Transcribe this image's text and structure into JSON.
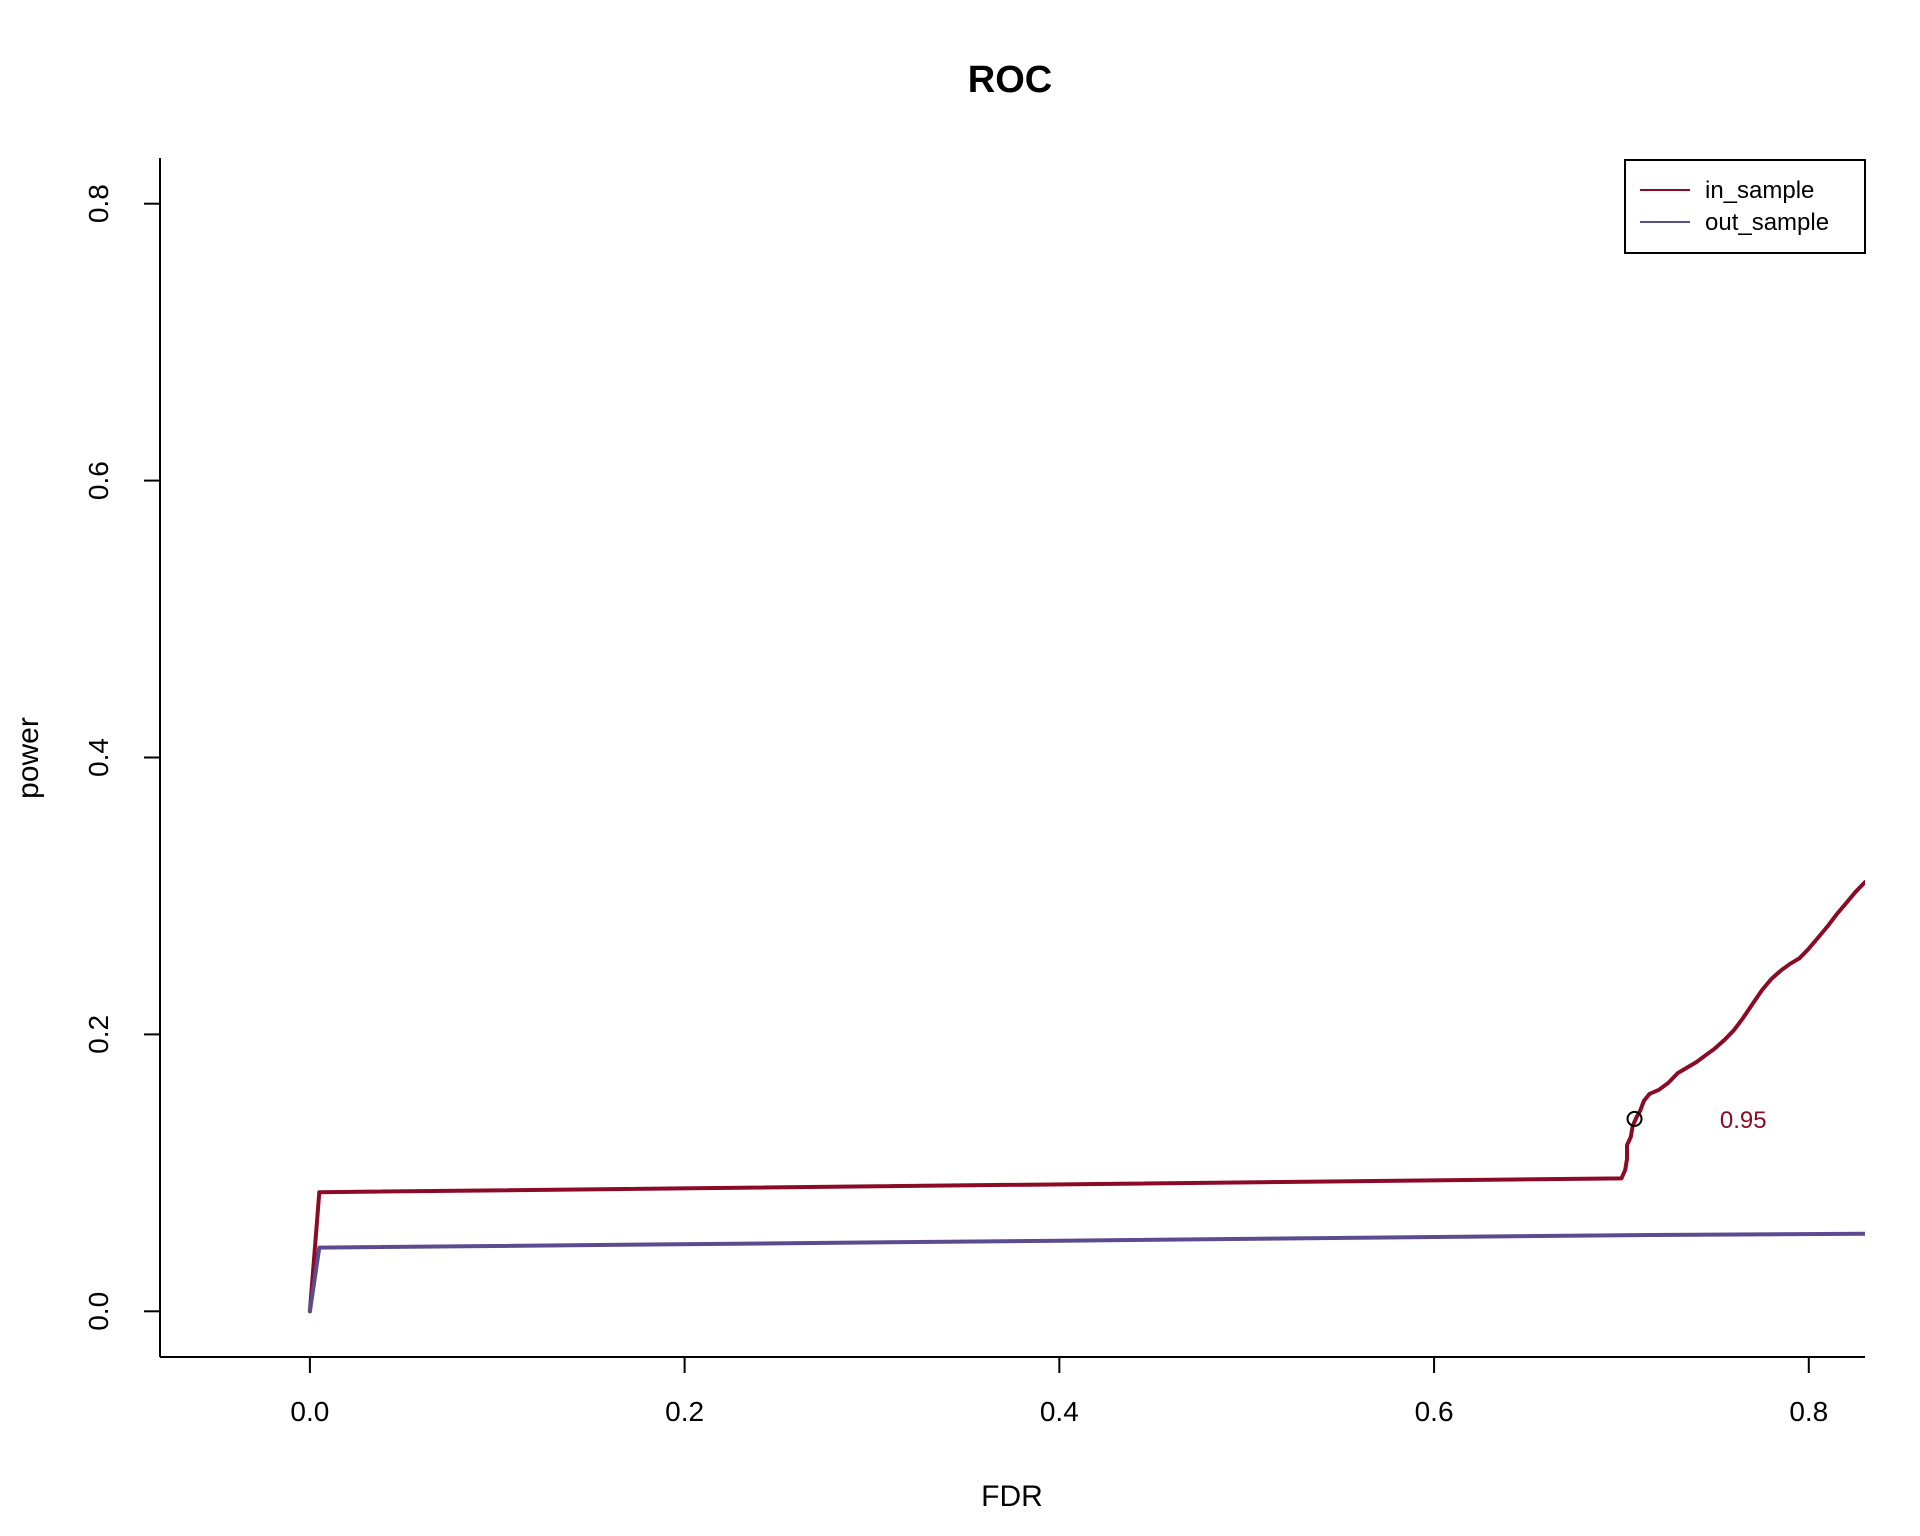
{
  "chart_data": {
    "type": "line",
    "title": "ROC",
    "xlabel": "FDR",
    "ylabel": "power",
    "xlim": [
      -0.08,
      0.83
    ],
    "ylim": [
      -0.033,
      0.833
    ],
    "xticks": [
      0.0,
      0.2,
      0.4,
      0.6,
      0.8
    ],
    "xtick_labels": [
      "0.0",
      "0.2",
      "0.4",
      "0.6",
      "0.8"
    ],
    "yticks": [
      0.0,
      0.2,
      0.4,
      0.6,
      0.8
    ],
    "ytick_labels": [
      "0.0",
      "0.2",
      "0.4",
      "0.6",
      "0.8"
    ],
    "grid": false,
    "legend_position": "top-right",
    "series": [
      {
        "name": "in_sample",
        "color": "#8b0a26",
        "points": [
          [
            0.0,
            0.0
          ],
          [
            0.005,
            0.086
          ],
          [
            0.7,
            0.096
          ],
          [
            0.702,
            0.102
          ],
          [
            0.703,
            0.11
          ],
          [
            0.703,
            0.12
          ],
          [
            0.705,
            0.126
          ],
          [
            0.706,
            0.134
          ],
          [
            0.708,
            0.14
          ],
          [
            0.71,
            0.145
          ],
          [
            0.712,
            0.152
          ],
          [
            0.715,
            0.157
          ],
          [
            0.72,
            0.16
          ],
          [
            0.725,
            0.165
          ],
          [
            0.73,
            0.172
          ],
          [
            0.735,
            0.176
          ],
          [
            0.74,
            0.18
          ],
          [
            0.745,
            0.185
          ],
          [
            0.75,
            0.19
          ],
          [
            0.755,
            0.196
          ],
          [
            0.76,
            0.203
          ],
          [
            0.765,
            0.212
          ],
          [
            0.77,
            0.222
          ],
          [
            0.775,
            0.232
          ],
          [
            0.78,
            0.24
          ],
          [
            0.785,
            0.246
          ],
          [
            0.79,
            0.251
          ],
          [
            0.795,
            0.255
          ],
          [
            0.8,
            0.262
          ],
          [
            0.805,
            0.27
          ],
          [
            0.81,
            0.278
          ],
          [
            0.815,
            0.287
          ],
          [
            0.82,
            0.295
          ],
          [
            0.825,
            0.303
          ],
          [
            0.83,
            0.31
          ]
        ]
      },
      {
        "name": "out_sample",
        "color": "#5c4b8f",
        "points": [
          [
            0.0,
            0.0
          ],
          [
            0.005,
            0.046
          ],
          [
            0.4,
            0.051
          ],
          [
            0.7,
            0.055
          ],
          [
            0.83,
            0.056
          ]
        ]
      }
    ],
    "annotations": [
      {
        "text": "0.95",
        "x": 0.765,
        "y": 0.139,
        "color": "#8b0a26"
      }
    ],
    "markers": [
      {
        "shape": "circle-open",
        "x": 0.707,
        "y": 0.139
      }
    ]
  }
}
